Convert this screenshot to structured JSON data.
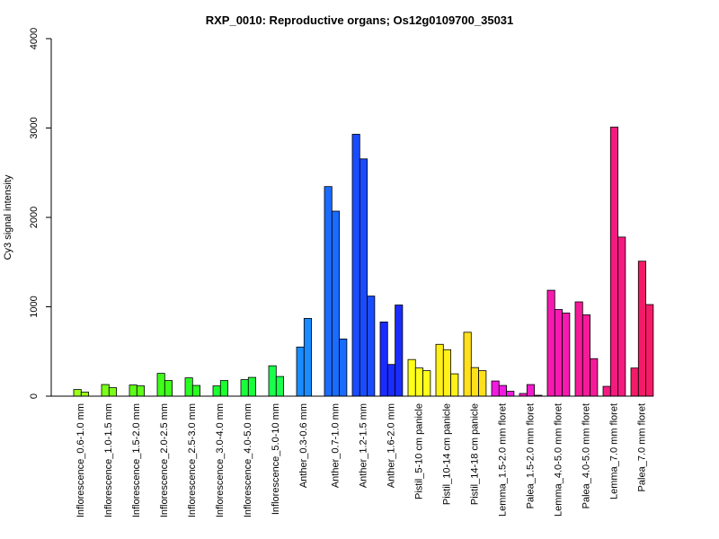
{
  "chart_data": {
    "type": "bar",
    "title": "RXP_0010: Reproductive organs; Os12g0109700_35031",
    "xlabel": "",
    "ylabel": "Cy3 signal intensity",
    "ylim": [
      0,
      4000
    ],
    "yticks": [
      0,
      1000,
      2000,
      3000,
      4000
    ],
    "grid": false,
    "legend": "none",
    "groups": [
      {
        "label": "Inflorescence_0.6-1.0 mm",
        "color": "#9BFF1A",
        "values": [
          75,
          45
        ]
      },
      {
        "label": "Inflorescence_1.0-1.5 mm",
        "color": "#7BFF1A",
        "values": [
          130,
          95
        ]
      },
      {
        "label": "Inflorescence_1.5-2.0 mm",
        "color": "#5DFF1A",
        "values": [
          125,
          115
        ]
      },
      {
        "label": "Inflorescence_2.0-2.5 mm",
        "color": "#3FFF1A",
        "values": [
          255,
          175
        ]
      },
      {
        "label": "Inflorescence_2.5-3.0 mm",
        "color": "#2AFF22",
        "values": [
          205,
          120
        ]
      },
      {
        "label": "Inflorescence_3.0-4.0 mm",
        "color": "#1AFF2E",
        "values": [
          115,
          175
        ]
      },
      {
        "label": "Inflorescence_4.0-5.0 mm",
        "color": "#1AFF3C",
        "values": [
          185,
          210
        ]
      },
      {
        "label": "Inflorescence_5.0-10 mm",
        "color": "#1AFF4C",
        "values": [
          340,
          220
        ]
      },
      {
        "label": "Anther_0.3-0.6 mm",
        "color": "#1A8CFF",
        "values": [
          550,
          870
        ]
      },
      {
        "label": "Anther_0.7-1.0 mm",
        "color": "#1A6CFF",
        "values": [
          2345,
          2070,
          640
        ]
      },
      {
        "label": "Anther_1.2-1.5 mm",
        "color": "#1A4CFF",
        "values": [
          2930,
          2655,
          1120
        ]
      },
      {
        "label": "Anther_1.6-2.0 mm",
        "color": "#1A2CFF",
        "values": [
          830,
          355,
          1020
        ]
      },
      {
        "label": "Pistil_5-10 cm panicle",
        "color": "#FFFF1A",
        "values": [
          410,
          315,
          285
        ]
      },
      {
        "label": "Pistil_10-14 cm panicle",
        "color": "#FFF01A",
        "values": [
          580,
          520,
          250
        ]
      },
      {
        "label": "Pistil_14-18 cm panicle",
        "color": "#FFE01A",
        "values": [
          715,
          320,
          285
        ]
      },
      {
        "label": "Lemma_1.5-2.0 mm floret",
        "color": "#F01AE0",
        "values": [
          170,
          120,
          55
        ]
      },
      {
        "label": "Palea_1.5-2.0 mm floret",
        "color": "#F51ACB",
        "values": [
          30,
          130,
          10
        ]
      },
      {
        "label": "Lemma_4.0-5.0 mm floret",
        "color": "#F51AB0",
        "values": [
          1185,
          970,
          930
        ]
      },
      {
        "label": "Palea_4.0-5.0 mm floret",
        "color": "#F51A98",
        "values": [
          1055,
          910,
          420
        ]
      },
      {
        "label": "Lemma_7.0 mm floret",
        "color": "#F51A80",
        "values": [
          110,
          3010,
          1780
        ]
      },
      {
        "label": "Palea_7.0 mm floret",
        "color": "#F51A68",
        "values": [
          315,
          1510,
          1025
        ]
      }
    ]
  }
}
